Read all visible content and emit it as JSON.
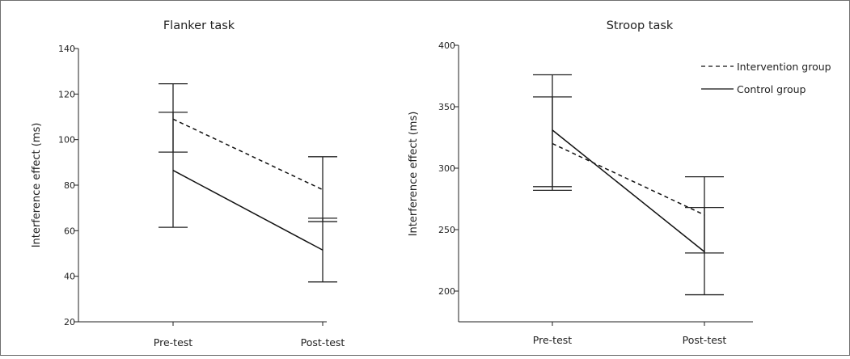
{
  "chart_data": [
    {
      "type": "line",
      "title": "Flanker task",
      "xlabel": "",
      "ylabel": "Interference effect (ms)",
      "categories": [
        "Pre-test",
        "Post-test"
      ],
      "ylim": [
        20,
        140
      ],
      "yticks": [
        20,
        40,
        60,
        80,
        100,
        120,
        140
      ],
      "grid": false,
      "series": [
        {
          "name": "Intervention group",
          "style": "dashed",
          "values": [
            109,
            78
          ],
          "error_low": [
            94.5,
            64
          ],
          "error_high": [
            124.5,
            92.5
          ]
        },
        {
          "name": "Control group",
          "style": "solid",
          "values": [
            86.5,
            51.5
          ],
          "error_low": [
            61.5,
            37.5
          ],
          "error_high": [
            112,
            65.5
          ]
        }
      ]
    },
    {
      "type": "line",
      "title": "Stroop task",
      "xlabel": "",
      "ylabel": "Interference effect (ms)",
      "categories": [
        "Pre-test",
        "Post-test"
      ],
      "ylim": [
        175,
        400
      ],
      "yticks": [
        200,
        250,
        300,
        350,
        400
      ],
      "grid": false,
      "legend_position": "top-right",
      "series": [
        {
          "name": "Intervention group",
          "style": "dashed",
          "values": [
            320,
            262
          ],
          "error_low": [
            282,
            231
          ],
          "error_high": [
            358,
            293
          ]
        },
        {
          "name": "Control group",
          "style": "solid",
          "values": [
            331,
            232
          ],
          "error_low": [
            285,
            197
          ],
          "error_high": [
            376,
            268
          ]
        }
      ]
    }
  ]
}
